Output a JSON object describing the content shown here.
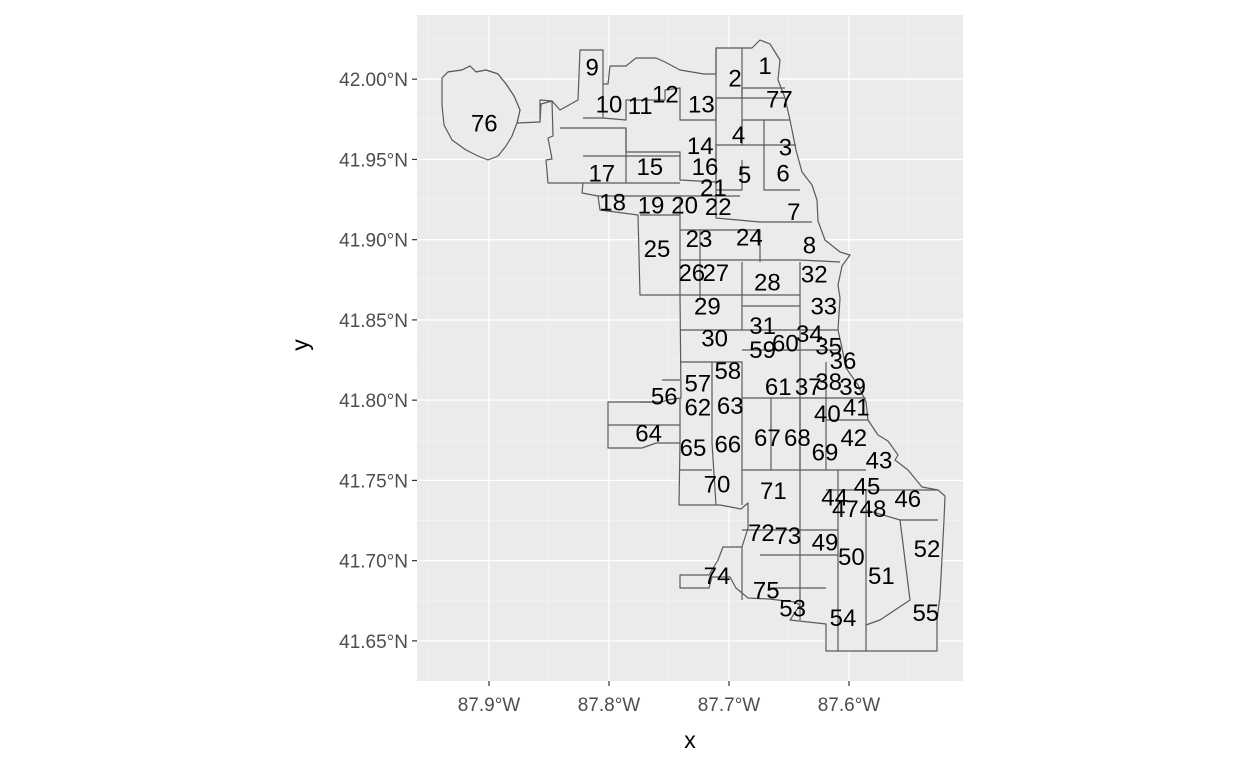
{
  "chart_data": {
    "type": "map",
    "xlabel": "x",
    "ylabel": "y",
    "x_ticks": [
      "87.9°W",
      "87.8°W",
      "87.7°W",
      "87.6°W"
    ],
    "y_ticks": [
      "41.65°N",
      "41.70°N",
      "41.75°N",
      "41.80°N",
      "41.85°N",
      "41.90°N",
      "41.95°N",
      "42.00°N"
    ],
    "x_tick_values": [
      -87.9,
      -87.8,
      -87.7,
      -87.6
    ],
    "y_tick_values": [
      41.65,
      41.7,
      41.75,
      41.8,
      41.85,
      41.9,
      41.95,
      42.0
    ],
    "xlim": [
      -87.96,
      -87.505
    ],
    "ylim": [
      41.625,
      42.04
    ],
    "panel_background": "#ebebeb",
    "grid": true,
    "area_fill": "#ebebeb",
    "area_border": "#5a5a5a",
    "labels": [
      {
        "text": "1",
        "lon": -87.67,
        "lat": 42.008
      },
      {
        "text": "2",
        "lon": -87.695,
        "lat": 42.0
      },
      {
        "text": "3",
        "lon": -87.653,
        "lat": 41.957
      },
      {
        "text": "4",
        "lon": -87.692,
        "lat": 41.965
      },
      {
        "text": "5",
        "lon": -87.687,
        "lat": 41.94
      },
      {
        "text": "6",
        "lon": -87.655,
        "lat": 41.941
      },
      {
        "text": "7",
        "lon": -87.646,
        "lat": 41.917
      },
      {
        "text": "8",
        "lon": -87.633,
        "lat": 41.896
      },
      {
        "text": "9",
        "lon": -87.814,
        "lat": 42.007
      },
      {
        "text": "10",
        "lon": -87.8,
        "lat": 41.984
      },
      {
        "text": "11",
        "lon": -87.774,
        "lat": 41.983
      },
      {
        "text": "12",
        "lon": -87.753,
        "lat": 41.99
      },
      {
        "text": "13",
        "lon": -87.723,
        "lat": 41.984
      },
      {
        "text": "14",
        "lon": -87.724,
        "lat": 41.958
      },
      {
        "text": "15",
        "lon": -87.766,
        "lat": 41.945
      },
      {
        "text": "16",
        "lon": -87.72,
        "lat": 41.945
      },
      {
        "text": "17",
        "lon": -87.806,
        "lat": 41.941
      },
      {
        "text": "18",
        "lon": -87.797,
        "lat": 41.923
      },
      {
        "text": "19",
        "lon": -87.765,
        "lat": 41.921
      },
      {
        "text": "20",
        "lon": -87.737,
        "lat": 41.921
      },
      {
        "text": "21",
        "lon": -87.713,
        "lat": 41.932
      },
      {
        "text": "22",
        "lon": -87.709,
        "lat": 41.92
      },
      {
        "text": "23",
        "lon": -87.725,
        "lat": 41.9
      },
      {
        "text": "24",
        "lon": -87.683,
        "lat": 41.901
      },
      {
        "text": "25",
        "lon": -87.76,
        "lat": 41.894
      },
      {
        "text": "26",
        "lon": -87.731,
        "lat": 41.879
      },
      {
        "text": "27",
        "lon": -87.711,
        "lat": 41.879
      },
      {
        "text": "28",
        "lon": -87.668,
        "lat": 41.873
      },
      {
        "text": "29",
        "lon": -87.718,
        "lat": 41.858
      },
      {
        "text": "30",
        "lon": -87.712,
        "lat": 41.838
      },
      {
        "text": "31",
        "lon": -87.672,
        "lat": 41.846
      },
      {
        "text": "32",
        "lon": -87.629,
        "lat": 41.878
      },
      {
        "text": "33",
        "lon": -87.621,
        "lat": 41.858
      },
      {
        "text": "34",
        "lon": -87.633,
        "lat": 41.841
      },
      {
        "text": "35",
        "lon": -87.617,
        "lat": 41.833
      },
      {
        "text": "36",
        "lon": -87.605,
        "lat": 41.824
      },
      {
        "text": "37",
        "lon": -87.634,
        "lat": 41.808
      },
      {
        "text": "38",
        "lon": -87.617,
        "lat": 41.811
      },
      {
        "text": "39",
        "lon": -87.597,
        "lat": 41.808
      },
      {
        "text": "40",
        "lon": -87.618,
        "lat": 41.791
      },
      {
        "text": "41",
        "lon": -87.594,
        "lat": 41.795
      },
      {
        "text": "42",
        "lon": -87.596,
        "lat": 41.776
      },
      {
        "text": "43",
        "lon": -87.575,
        "lat": 41.762
      },
      {
        "text": "44",
        "lon": -87.612,
        "lat": 41.739
      },
      {
        "text": "45",
        "lon": -87.585,
        "lat": 41.746
      },
      {
        "text": "46",
        "lon": -87.551,
        "lat": 41.738
      },
      {
        "text": "47",
        "lon": -87.603,
        "lat": 41.732
      },
      {
        "text": "48",
        "lon": -87.58,
        "lat": 41.732
      },
      {
        "text": "49",
        "lon": -87.62,
        "lat": 41.711
      },
      {
        "text": "50",
        "lon": -87.598,
        "lat": 41.702
      },
      {
        "text": "51",
        "lon": -87.573,
        "lat": 41.69
      },
      {
        "text": "52",
        "lon": -87.535,
        "lat": 41.707
      },
      {
        "text": "53",
        "lon": -87.647,
        "lat": 41.67
      },
      {
        "text": "54",
        "lon": -87.605,
        "lat": 41.664
      },
      {
        "text": "55",
        "lon": -87.536,
        "lat": 41.667
      },
      {
        "text": "56",
        "lon": -87.754,
        "lat": 41.802
      },
      {
        "text": "57",
        "lon": -87.726,
        "lat": 41.81
      },
      {
        "text": "58",
        "lon": -87.701,
        "lat": 41.818
      },
      {
        "text": "59",
        "lon": -87.672,
        "lat": 41.831
      },
      {
        "text": "60",
        "lon": -87.653,
        "lat": 41.835
      },
      {
        "text": "61",
        "lon": -87.659,
        "lat": 41.808
      },
      {
        "text": "62",
        "lon": -87.726,
        "lat": 41.795
      },
      {
        "text": "63",
        "lon": -87.699,
        "lat": 41.796
      },
      {
        "text": "64",
        "lon": -87.767,
        "lat": 41.779
      },
      {
        "text": "65",
        "lon": -87.73,
        "lat": 41.77
      },
      {
        "text": "66",
        "lon": -87.701,
        "lat": 41.772
      },
      {
        "text": "67",
        "lon": -87.668,
        "lat": 41.776
      },
      {
        "text": "68",
        "lon": -87.643,
        "lat": 41.776
      },
      {
        "text": "69",
        "lon": -87.62,
        "lat": 41.767
      },
      {
        "text": "70",
        "lon": -87.71,
        "lat": 41.747
      },
      {
        "text": "71",
        "lon": -87.663,
        "lat": 41.743
      },
      {
        "text": "72",
        "lon": -87.673,
        "lat": 41.717
      },
      {
        "text": "73",
        "lon": -87.651,
        "lat": 41.715
      },
      {
        "text": "74",
        "lon": -87.71,
        "lat": 41.69
      },
      {
        "text": "75",
        "lon": -87.669,
        "lat": 41.681
      },
      {
        "text": "76",
        "lon": -87.904,
        "lat": 41.972
      },
      {
        "text": "77",
        "lon": -87.658,
        "lat": 41.987
      }
    ]
  }
}
